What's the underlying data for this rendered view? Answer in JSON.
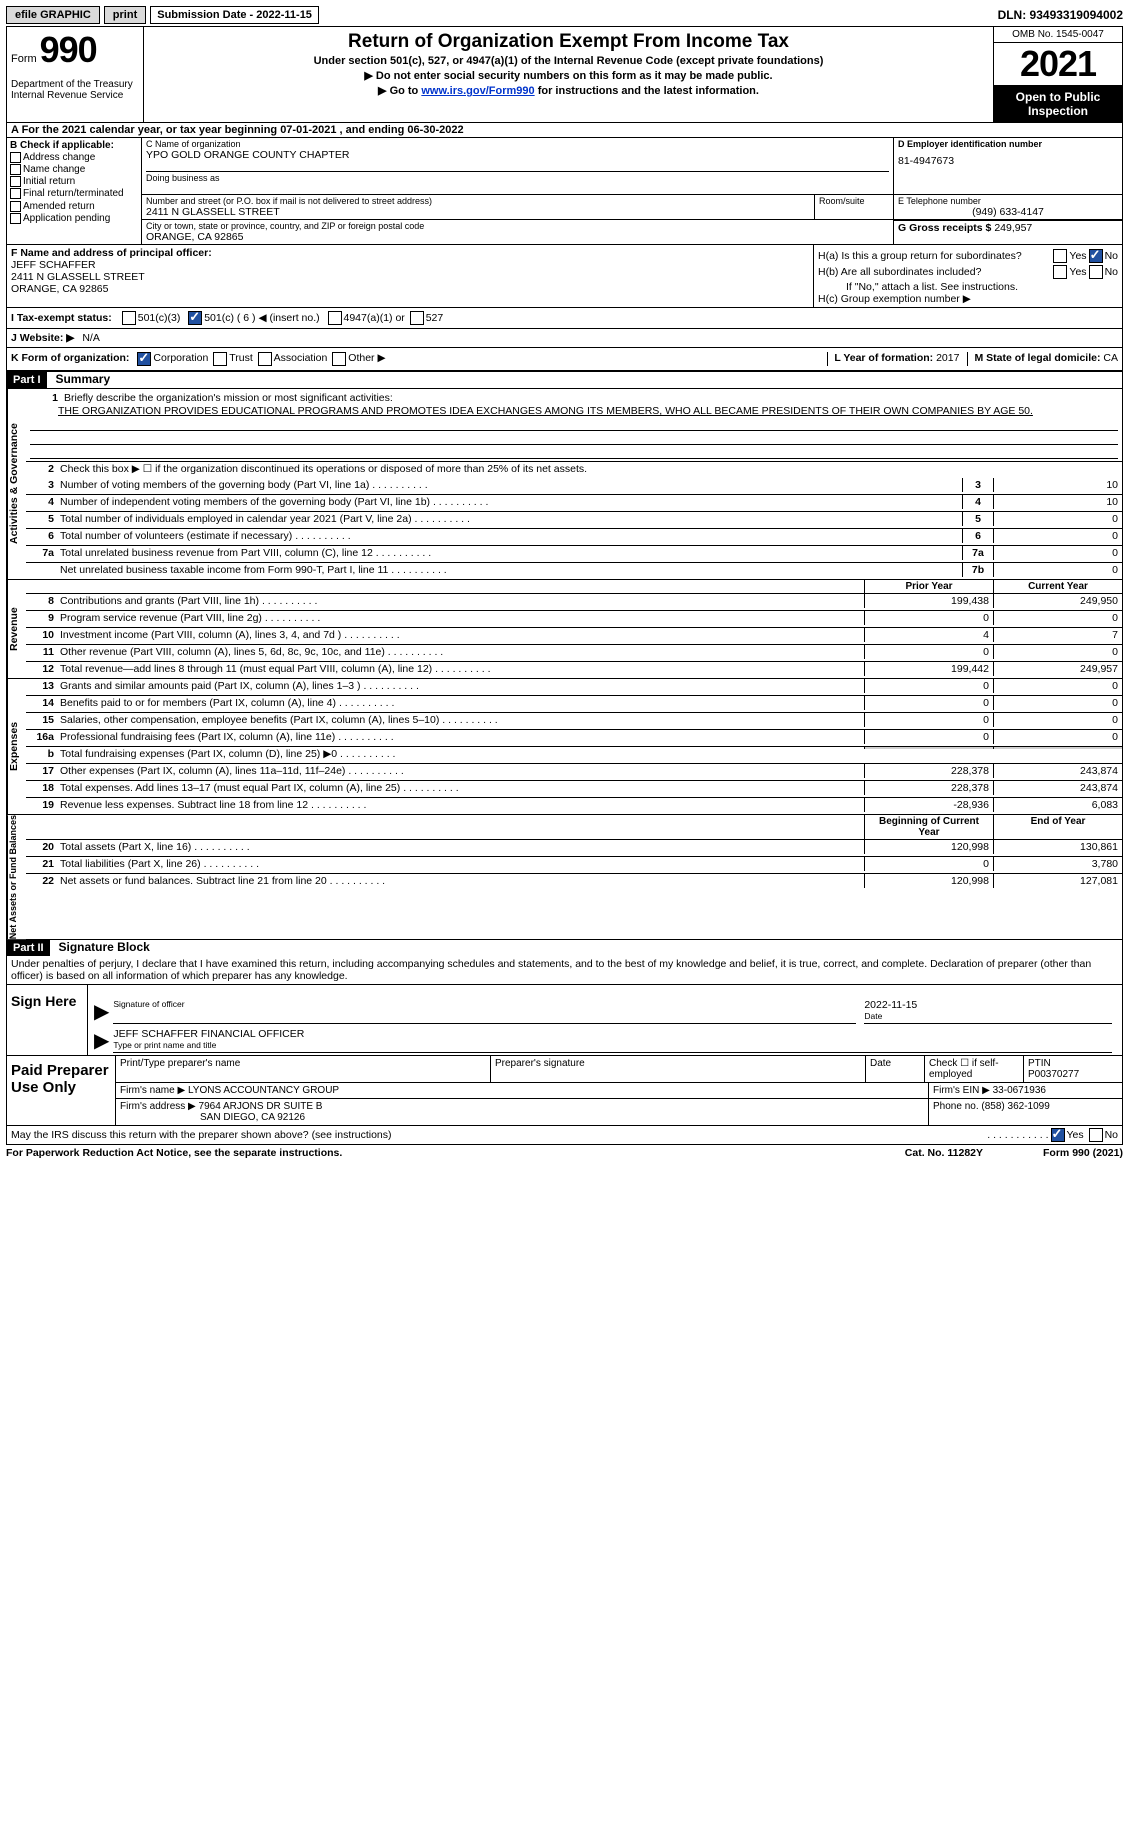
{
  "topbar": {
    "efile": "efile GRAPHIC",
    "print": "print",
    "sub_date_label": "Submission Date - 2022-11-15",
    "dln": "DLN: 93493319094002"
  },
  "header": {
    "form_word": "Form",
    "form_num": "990",
    "dept": "Department of the Treasury\nInternal Revenue Service",
    "title": "Return of Organization Exempt From Income Tax",
    "subtitle": "Under section 501(c), 527, or 4947(a)(1) of the Internal Revenue Code (except private foundations)",
    "line1": "▶ Do not enter social security numbers on this form as it may be made public.",
    "line2a": "▶ Go to ",
    "line2_link": "www.irs.gov/Form990",
    "line2b": " for instructions and the latest information.",
    "omb": "OMB No. 1545-0047",
    "year": "2021",
    "open": "Open to Public Inspection"
  },
  "row_a": "A For the 2021 calendar year, or tax year beginning 07-01-2021   , and ending 06-30-2022",
  "col_b": {
    "header": "B Check if applicable:",
    "items": [
      "Address change",
      "Name change",
      "Initial return",
      "Final return/terminated",
      "Amended return",
      "Application pending"
    ]
  },
  "col_c": {
    "name_label": "C Name of organization",
    "name": "YPO GOLD ORANGE COUNTY CHAPTER",
    "dba_label": "Doing business as",
    "street_label": "Number and street (or P.O. box if mail is not delivered to street address)",
    "room_label": "Room/suite",
    "street": "2411 N GLASSELL STREET",
    "city_label": "City or town, state or province, country, and ZIP or foreign postal code",
    "city": "ORANGE, CA  92865"
  },
  "col_d": {
    "ein_label": "D Employer identification number",
    "ein": "81-4947673",
    "phone_label": "E Telephone number",
    "phone": "(949) 633-4147",
    "gross_label": "G Gross receipts $",
    "gross": "249,957"
  },
  "officer": {
    "label": "F  Name and address of principal officer:",
    "name": "JEFF SCHAFFER",
    "addr1": "2411 N GLASSELL STREET",
    "addr2": "ORANGE, CA  92865"
  },
  "h_block": {
    "ha": "H(a)  Is this a group return for subordinates?",
    "hb": "H(b)  Are all subordinates included?",
    "hb_note": "If \"No,\" attach a list. See instructions.",
    "hc": "H(c)  Group exemption number ▶",
    "yes": "Yes",
    "no": "No"
  },
  "row_i": {
    "label": "I   Tax-exempt status:",
    "opt1": "501(c)(3)",
    "opt2": "501(c) ( 6 ) ◀ (insert no.)",
    "opt3": "4947(a)(1) or",
    "opt4": "527"
  },
  "row_j": {
    "label": "J   Website: ▶",
    "val": "N/A"
  },
  "row_k": {
    "label": "K Form of organization:",
    "corp": "Corporation",
    "trust": "Trust",
    "assoc": "Association",
    "other": "Other ▶",
    "l_label": "L Year of formation:",
    "l_val": "2017",
    "m_label": "M State of legal domicile:",
    "m_val": "CA"
  },
  "part1": {
    "header": "Part I",
    "title": "Summary"
  },
  "mission": {
    "label": "Briefly describe the organization's mission or most significant activities:",
    "text": "THE ORGANIZATION PROVIDES EDUCATIONAL PROGRAMS AND PROMOTES IDEA EXCHANGES AMONG ITS MEMBERS, WHO ALL BECAME PRESIDENTS OF THEIR OWN COMPANIES BY AGE 50."
  },
  "summary": {
    "line2": "Check this box ▶ ☐  if the organization discontinued its operations or disposed of more than 25% of its net assets.",
    "rows_ag": [
      {
        "n": "3",
        "t": "Number of voting members of the governing body (Part VI, line 1a)",
        "box": "3",
        "v": "10"
      },
      {
        "n": "4",
        "t": "Number of independent voting members of the governing body (Part VI, line 1b)",
        "box": "4",
        "v": "10"
      },
      {
        "n": "5",
        "t": "Total number of individuals employed in calendar year 2021 (Part V, line 2a)",
        "box": "5",
        "v": "0"
      },
      {
        "n": "6",
        "t": "Total number of volunteers (estimate if necessary)",
        "box": "6",
        "v": "0"
      },
      {
        "n": "7a",
        "t": "Total unrelated business revenue from Part VIII, column (C), line 12",
        "box": "7a",
        "v": "0"
      },
      {
        "n": "",
        "t": "Net unrelated business taxable income from Form 990-T, Part I, line 11",
        "box": "7b",
        "v": "0"
      }
    ],
    "prior_label": "Prior Year",
    "cur_label": "Current Year",
    "rows_rev": [
      {
        "n": "8",
        "t": "Contributions and grants (Part VIII, line 1h)",
        "p": "199,438",
        "c": "249,950"
      },
      {
        "n": "9",
        "t": "Program service revenue (Part VIII, line 2g)",
        "p": "0",
        "c": "0"
      },
      {
        "n": "10",
        "t": "Investment income (Part VIII, column (A), lines 3, 4, and 7d )",
        "p": "4",
        "c": "7"
      },
      {
        "n": "11",
        "t": "Other revenue (Part VIII, column (A), lines 5, 6d, 8c, 9c, 10c, and 11e)",
        "p": "0",
        "c": "0"
      },
      {
        "n": "12",
        "t": "Total revenue—add lines 8 through 11 (must equal Part VIII, column (A), line 12)",
        "p": "199,442",
        "c": "249,957"
      }
    ],
    "rows_exp": [
      {
        "n": "13",
        "t": "Grants and similar amounts paid (Part IX, column (A), lines 1–3 )",
        "p": "0",
        "c": "0"
      },
      {
        "n": "14",
        "t": "Benefits paid to or for members (Part IX, column (A), line 4)",
        "p": "0",
        "c": "0"
      },
      {
        "n": "15",
        "t": "Salaries, other compensation, employee benefits (Part IX, column (A), lines 5–10)",
        "p": "0",
        "c": "0"
      },
      {
        "n": "16a",
        "t": "Professional fundraising fees (Part IX, column (A), line 11e)",
        "p": "0",
        "c": "0"
      },
      {
        "n": "b",
        "t": "Total fundraising expenses (Part IX, column (D), line 25) ▶0",
        "p": "",
        "c": "",
        "grey": true
      },
      {
        "n": "17",
        "t": "Other expenses (Part IX, column (A), lines 11a–11d, 11f–24e)",
        "p": "228,378",
        "c": "243,874"
      },
      {
        "n": "18",
        "t": "Total expenses. Add lines 13–17 (must equal Part IX, column (A), line 25)",
        "p": "228,378",
        "c": "243,874"
      },
      {
        "n": "19",
        "t": "Revenue less expenses. Subtract line 18 from line 12",
        "p": "-28,936",
        "c": "6,083"
      }
    ],
    "beg_label": "Beginning of Current Year",
    "end_label": "End of Year",
    "rows_net": [
      {
        "n": "20",
        "t": "Total assets (Part X, line 16)",
        "p": "120,998",
        "c": "130,861"
      },
      {
        "n": "21",
        "t": "Total liabilities (Part X, line 26)",
        "p": "0",
        "c": "3,780"
      },
      {
        "n": "22",
        "t": "Net assets or fund balances. Subtract line 21 from line 20",
        "p": "120,998",
        "c": "127,081"
      }
    ]
  },
  "side_labels": {
    "ag": "Activities & Governance",
    "rev": "Revenue",
    "exp": "Expenses",
    "net": "Net Assets or\nFund Balances"
  },
  "part2": {
    "header": "Part II",
    "title": "Signature Block"
  },
  "sig": {
    "declare": "Under penalties of perjury, I declare that I have examined this return, including accompanying schedules and statements, and to the best of my knowledge and belief, it is true, correct, and complete. Declaration of preparer (other than officer) is based on all information of which preparer has any knowledge.",
    "sign_here": "Sign Here",
    "sig_officer": "Signature of officer",
    "date": "Date",
    "date_val": "2022-11-15",
    "name_title": "JEFF SCHAFFER  FINANCIAL OFFICER",
    "name_label": "Type or print name and title"
  },
  "prep": {
    "label": "Paid Preparer Use Only",
    "print_name": "Print/Type preparer's name",
    "prep_sig": "Preparer's signature",
    "date": "Date",
    "check_se": "Check ☐ if self-employed",
    "ptin_label": "PTIN",
    "ptin": "P00370277",
    "firm_name_label": "Firm's name    ▶",
    "firm_name": "LYONS ACCOUNTANCY GROUP",
    "firm_ein_label": "Firm's EIN ▶",
    "firm_ein": "33-0671936",
    "firm_addr_label": "Firm's address ▶",
    "firm_addr1": "7964 ARJONS DR SUITE B",
    "firm_addr2": "SAN DIEGO, CA  92126",
    "phone_label": "Phone no.",
    "phone": "(858) 362-1099"
  },
  "footer": {
    "discuss": "May the IRS discuss this return with the preparer shown above? (see instructions)",
    "yes": "Yes",
    "no": "No",
    "paperwork": "For Paperwork Reduction Act Notice, see the separate instructions.",
    "cat": "Cat. No. 11282Y",
    "form": "Form 990 (2021)"
  }
}
